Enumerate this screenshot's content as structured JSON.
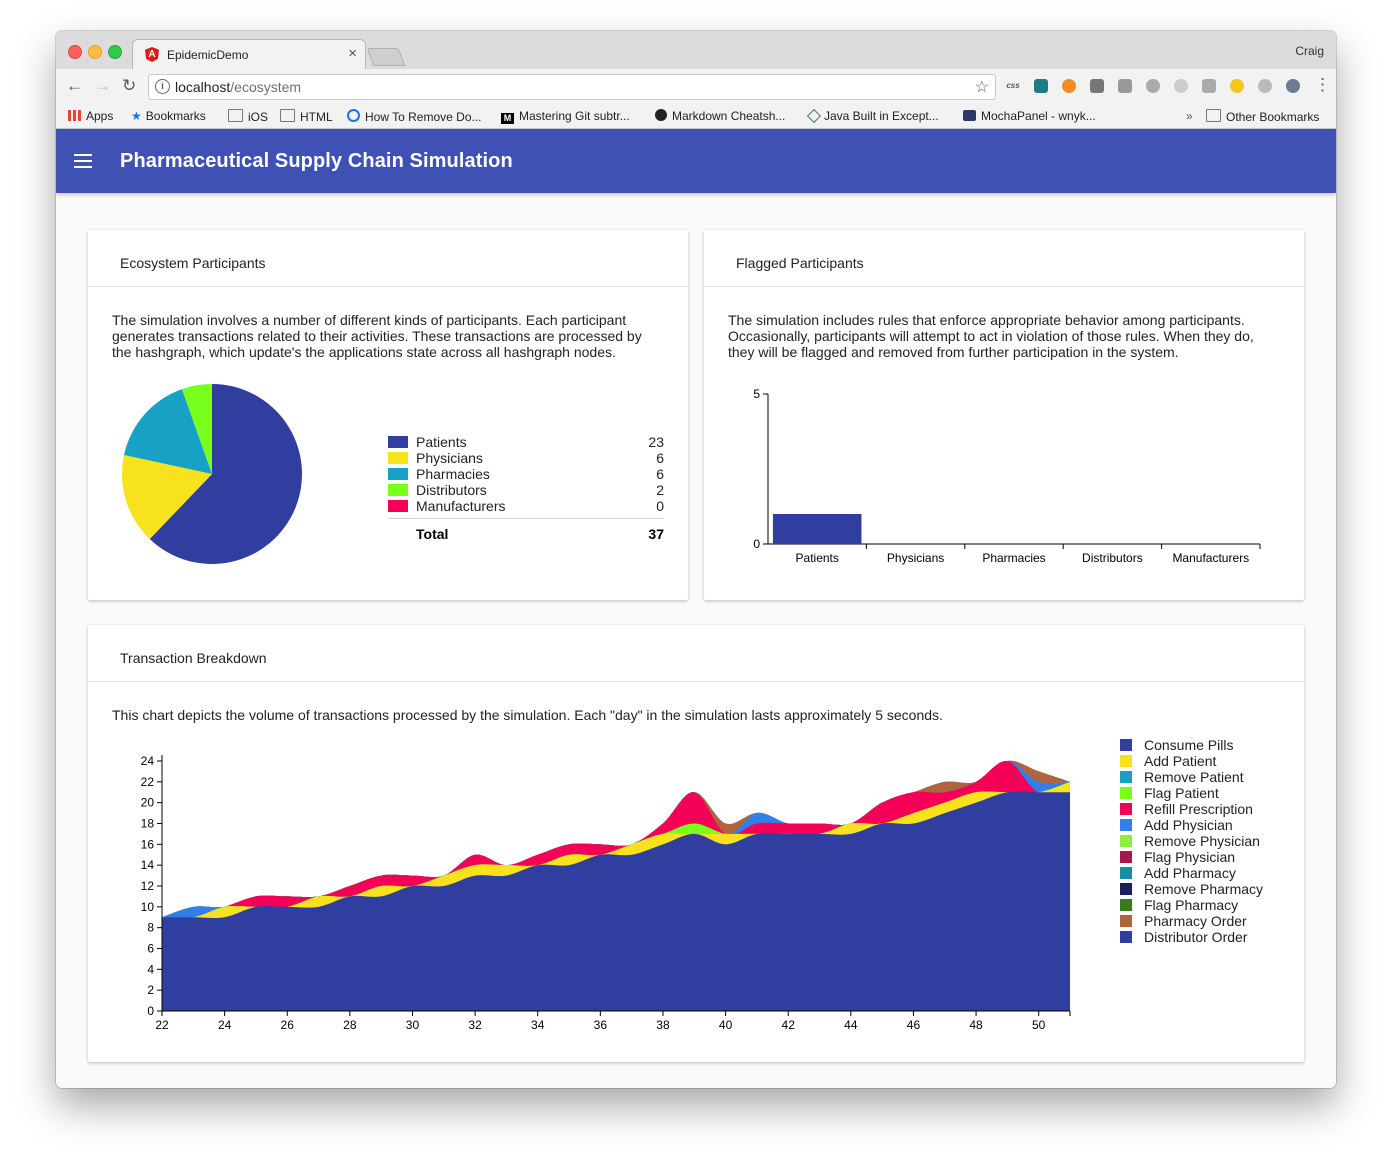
{
  "browser": {
    "tab_title": "EpidemicDemo",
    "tab_close": "×",
    "profile_name": "Craig",
    "url_host": "localhost",
    "url_path": "/ecosystem",
    "bookmarks": [
      {
        "label": "Apps",
        "icon": "apps-grid-icon"
      },
      {
        "label": "Bookmarks",
        "icon": "star-icon"
      },
      {
        "label": "iOS",
        "icon": "folder-icon"
      },
      {
        "label": "HTML",
        "icon": "folder-icon"
      },
      {
        "label": "How To Remove Do...",
        "icon": "site-icon"
      },
      {
        "label": "Mastering Git subtr...",
        "icon": "medium-icon"
      },
      {
        "label": "Markdown Cheatsh...",
        "icon": "github-icon"
      },
      {
        "label": "Java Built in Except...",
        "icon": "site-icon"
      },
      {
        "label": "MochaPanel - wnyk...",
        "icon": "site-icon"
      }
    ],
    "overflow": "»",
    "other_bookmarks": "Other Bookmarks"
  },
  "app": {
    "title": "Pharmaceutical Supply Chain Simulation",
    "accent_color": "#3f51b5"
  },
  "ecosystem": {
    "title": "Ecosystem Participants",
    "description_lines": [
      "The simulation involves a number of different kinds of participants. Each participant",
      "generates transactions related to their activities. These transactions are processed by",
      "the hashgraph, which update's the applications state across all hashgraph nodes."
    ],
    "total_label": "Total",
    "total_value": "37"
  },
  "flagged": {
    "title": "Flagged Participants",
    "description_lines": [
      "The simulation includes rules that enforce appropriate behavior among participants.",
      "Occasionally, participants will attempt to act in violation of those rules. When they do,",
      "they will be flagged and removed from further participation in the system."
    ]
  },
  "transactions": {
    "title": "Transaction Breakdown",
    "description": "This chart depicts the volume of transactions processed by the simulation. Each \"day\" in the simulation lasts approximately 5 seconds."
  },
  "chart_data": [
    {
      "type": "pie",
      "categories": [
        "Patients",
        "Physicians",
        "Pharmacies",
        "Distributors",
        "Manufacturers"
      ],
      "values": [
        23,
        6,
        6,
        2,
        0
      ],
      "colors": [
        "#303f9f",
        "#f7e21d",
        "#17a2c5",
        "#78ff1b",
        "#f50057"
      ]
    },
    {
      "type": "bar",
      "categories": [
        "Patients",
        "Physicians",
        "Pharmacies",
        "Distributors",
        "Manufacturers"
      ],
      "values": [
        1,
        0,
        0,
        0,
        0
      ],
      "ylim": [
        0,
        5
      ],
      "yticks": [
        0,
        5
      ],
      "color": "#303f9f"
    },
    {
      "type": "area",
      "stacked": true,
      "x": [
        22,
        23,
        24,
        25,
        26,
        27,
        28,
        29,
        30,
        31,
        32,
        33,
        34,
        35,
        36,
        37,
        38,
        39,
        40,
        41,
        42,
        43,
        44,
        45,
        46,
        47,
        48,
        49,
        50,
        51
      ],
      "xlim": [
        22,
        51
      ],
      "xticks": [
        22,
        24,
        26,
        28,
        30,
        32,
        34,
        36,
        38,
        40,
        42,
        44,
        46,
        48,
        50
      ],
      "ylim": [
        0,
        24
      ],
      "yticks": [
        0,
        2,
        4,
        6,
        8,
        10,
        12,
        14,
        16,
        18,
        20,
        22,
        24
      ],
      "series": [
        {
          "name": "Consume Pills",
          "color": "#303f9f",
          "values": [
            9,
            9,
            9,
            10,
            10,
            10,
            11,
            11,
            12,
            12,
            13,
            13,
            14,
            14,
            15,
            15,
            16,
            17,
            16,
            17,
            17,
            17,
            17,
            18,
            18,
            19,
            20,
            21,
            21,
            21
          ]
        },
        {
          "name": "Add Patient",
          "color": "#f7e21d",
          "values": [
            0,
            0,
            1,
            0,
            0,
            1,
            0,
            1,
            0,
            1,
            1,
            1,
            0,
            1,
            0,
            1,
            1,
            0,
            1,
            0,
            0,
            0,
            1,
            0,
            1,
            1,
            1,
            0,
            0,
            1
          ]
        },
        {
          "name": "Remove Patient",
          "color": "#17a2c5",
          "values": [
            0,
            0,
            0,
            0,
            0,
            0,
            0,
            0,
            0,
            0,
            0,
            0,
            0,
            0,
            0,
            0,
            0,
            0,
            0,
            0,
            0,
            0,
            0,
            0,
            0,
            0,
            0,
            0,
            0,
            0
          ]
        },
        {
          "name": "Flag Patient",
          "color": "#78ff1b",
          "values": [
            0,
            0,
            0,
            0,
            0,
            0,
            0,
            0,
            0,
            0,
            0,
            0,
            0,
            0,
            0,
            0,
            0,
            1,
            0,
            0,
            0,
            0,
            0,
            0,
            0,
            0,
            0,
            0,
            0,
            0
          ]
        },
        {
          "name": "Refill Prescription",
          "color": "#f50057",
          "values": [
            0,
            0,
            0,
            1,
            1,
            0,
            1,
            1,
            1,
            0,
            1,
            0,
            1,
            1,
            1,
            0,
            1,
            3,
            0,
            1,
            1,
            1,
            0,
            2,
            2,
            1,
            1,
            3,
            0,
            0
          ]
        },
        {
          "name": "Add Physician",
          "color": "#2f80ed",
          "values": [
            0,
            1,
            0,
            0,
            0,
            0,
            0,
            0,
            0,
            0,
            0,
            0,
            0,
            0,
            0,
            0,
            0,
            0,
            0,
            1,
            0,
            0,
            0,
            0,
            0,
            0,
            0,
            0,
            1,
            0
          ]
        },
        {
          "name": "Remove Physician",
          "color": "#8bf03a",
          "values": [
            0,
            0,
            0,
            0,
            0,
            0,
            0,
            0,
            0,
            0,
            0,
            0,
            0,
            0,
            0,
            0,
            0,
            0,
            0,
            0,
            0,
            0,
            0,
            0,
            0,
            0,
            0,
            0,
            0,
            0
          ]
        },
        {
          "name": "Flag Physician",
          "color": "#a8174a",
          "values": [
            0,
            0,
            0,
            0,
            0,
            0,
            0,
            0,
            0,
            0,
            0,
            0,
            0,
            0,
            0,
            0,
            0,
            0,
            0,
            0,
            0,
            0,
            0,
            0,
            0,
            0,
            0,
            0,
            0,
            0
          ]
        },
        {
          "name": "Add Pharmacy",
          "color": "#158ea6",
          "values": [
            0,
            0,
            0,
            0,
            0,
            0,
            0,
            0,
            0,
            0,
            0,
            0,
            0,
            0,
            0,
            0,
            0,
            0,
            0,
            0,
            0,
            0,
            0,
            0,
            0,
            0,
            0,
            0,
            0,
            0
          ]
        },
        {
          "name": "Remove Pharmacy",
          "color": "#1a1f5e",
          "values": [
            0,
            0,
            0,
            0,
            0,
            0,
            0,
            0,
            0,
            0,
            0,
            0,
            0,
            0,
            0,
            0,
            0,
            0,
            0,
            0,
            0,
            0,
            0,
            0,
            0,
            0,
            0,
            0,
            0,
            0
          ]
        },
        {
          "name": "Flag Pharmacy",
          "color": "#3a7a1a",
          "values": [
            0,
            0,
            0,
            0,
            0,
            0,
            0,
            0,
            0,
            0,
            0,
            0,
            0,
            0,
            0,
            0,
            0,
            0,
            0,
            0,
            0,
            0,
            0,
            0,
            0,
            0,
            0,
            0,
            0,
            0
          ]
        },
        {
          "name": "Pharmacy Order",
          "color": "#b0643c",
          "values": [
            0,
            0,
            0,
            0,
            0,
            0,
            0,
            0,
            0,
            0,
            0,
            0,
            0,
            0,
            0,
            0,
            0,
            0,
            1,
            0,
            0,
            0,
            0,
            0,
            0,
            1,
            0,
            0,
            1,
            0
          ]
        },
        {
          "name": "Distributor Order",
          "color": "#303f9f",
          "values": [
            0,
            0,
            0,
            0,
            0,
            0,
            0,
            0,
            0,
            0,
            0,
            0,
            0,
            0,
            0,
            0,
            0,
            0,
            0,
            0,
            0,
            0,
            0,
            0,
            0,
            0,
            0,
            0,
            0,
            0
          ]
        }
      ]
    }
  ]
}
